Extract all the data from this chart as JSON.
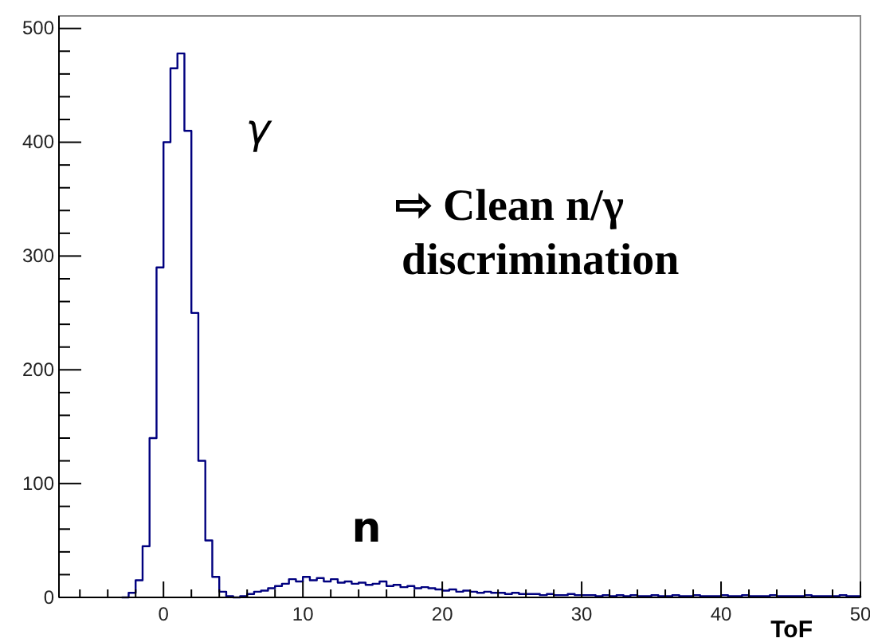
{
  "chart_data": {
    "type": "histogram",
    "xlabel": "ToF",
    "bins": [
      -3,
      -2.5,
      -2,
      -1.5,
      -1,
      -0.5,
      0,
      0.5,
      1,
      1.5,
      2,
      2.5,
      3,
      3.5,
      4,
      4.5,
      5,
      5.5,
      6,
      6.5,
      7,
      7.5,
      8,
      8.5,
      9,
      9.5,
      10,
      10.5,
      11,
      11.5,
      12,
      12.5,
      13,
      13.5,
      14,
      14.5,
      15,
      15.5,
      16,
      16.5,
      17,
      17.5,
      18,
      18.5,
      19,
      19.5,
      20,
      20.5,
      21,
      21.5,
      22,
      22.5,
      23,
      23.5,
      24,
      24.5,
      25,
      25.5,
      26,
      26.5,
      27,
      27.5,
      28,
      28.5,
      29,
      29.5,
      30,
      30.5,
      31,
      31.5,
      32,
      32.5,
      33,
      33.5,
      34,
      34.5,
      35,
      35.5,
      36,
      36.5,
      37,
      37.5,
      38,
      38.5,
      39,
      39.5,
      40,
      40.5,
      41,
      41.5,
      42,
      42.5,
      43,
      43.5,
      44,
      44.5,
      45,
      45.5,
      46,
      46.5,
      47,
      47.5,
      48,
      48.5,
      49,
      49.5,
      50
    ],
    "values": [
      0,
      4,
      15,
      45,
      140,
      290,
      400,
      465,
      478,
      410,
      250,
      120,
      50,
      18,
      5,
      1,
      0,
      1,
      3,
      5,
      6,
      8,
      10,
      12,
      16,
      14,
      18,
      15,
      17,
      14,
      16,
      13,
      14,
      12,
      13,
      11,
      12,
      14,
      10,
      11,
      9,
      10,
      8,
      9,
      8,
      7,
      6,
      7,
      5,
      6,
      5,
      4,
      5,
      4,
      4,
      3,
      4,
      3,
      3,
      3,
      2,
      3,
      2,
      2,
      3,
      2,
      2,
      2,
      1,
      2,
      1,
      2,
      1,
      2,
      1,
      1,
      2,
      1,
      1,
      2,
      1,
      1,
      2,
      1,
      1,
      1,
      2,
      1,
      1,
      2,
      1,
      1,
      1,
      2,
      1,
      1,
      1,
      1,
      2,
      1,
      1,
      1,
      1,
      2,
      1,
      1
    ],
    "color": "#00007f",
    "xlim": [
      -7.5,
      50
    ],
    "xticks": [
      {
        "value": -6,
        "label": null
      },
      {
        "value": -4,
        "label": null
      },
      {
        "value": -2,
        "label": null
      },
      0,
      {
        "value": 2,
        "label": null
      },
      {
        "value": 4,
        "label": null
      },
      {
        "value": 6,
        "label": null
      },
      {
        "value": 8,
        "label": null
      },
      10,
      {
        "value": 12,
        "label": null
      },
      {
        "value": 14,
        "label": null
      },
      {
        "value": 16,
        "label": null
      },
      {
        "value": 18,
        "label": null
      },
      20,
      {
        "value": 22,
        "label": null
      },
      {
        "value": 24,
        "label": null
      },
      {
        "value": 26,
        "label": null
      },
      {
        "value": 28,
        "label": null
      },
      30,
      {
        "value": 32,
        "label": null
      },
      {
        "value": 34,
        "label": null
      },
      {
        "value": 36,
        "label": null
      },
      {
        "value": 38,
        "label": null
      },
      40,
      {
        "value": 42,
        "label": null
      },
      {
        "value": 44,
        "label": null
      },
      {
        "value": 46,
        "label": null
      },
      {
        "value": 48,
        "label": null
      },
      50
    ],
    "ylim": [
      0,
      511
    ],
    "yticks": [
      0,
      {
        "value": 20,
        "label": null
      },
      {
        "value": 40,
        "label": null
      },
      {
        "value": 60,
        "label": null
      },
      {
        "value": 80,
        "label": null
      },
      100,
      {
        "value": 120,
        "label": null
      },
      {
        "value": 140,
        "label": null
      },
      {
        "value": 160,
        "label": null
      },
      {
        "value": 180,
        "label": null
      },
      200,
      {
        "value": 220,
        "label": null
      },
      {
        "value": 240,
        "label": null
      },
      {
        "value": 260,
        "label": null
      },
      {
        "value": 280,
        "label": null
      },
      300,
      {
        "value": 320,
        "label": null
      },
      {
        "value": 340,
        "label": null
      },
      {
        "value": 360,
        "label": null
      },
      {
        "value": 380,
        "label": null
      },
      400,
      {
        "value": 420,
        "label": null
      },
      {
        "value": 440,
        "label": null
      },
      {
        "value": 460,
        "label": null
      },
      {
        "value": 480,
        "label": null
      },
      500
    ],
    "annotations": [
      "γ",
      "n",
      "⇨ Clean n/γ discrimination"
    ]
  }
}
